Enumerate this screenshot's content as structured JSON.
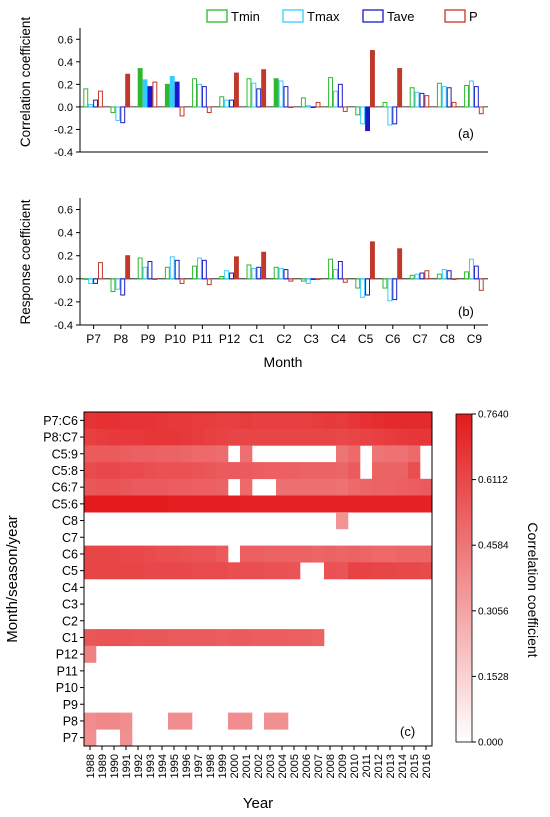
{
  "colors": {
    "tmin": "#2eb82e",
    "tmax": "#33ccff",
    "tave": "#1a1acc",
    "p": "#c0392b"
  },
  "legend": {
    "tmin": "Tmin",
    "tmax": "Tmax",
    "tave": "Tave",
    "p": "P"
  },
  "chart_data": [
    {
      "type": "bar",
      "panel_label": "(a)",
      "ylabel": "Correlation coefficient",
      "ylim": [
        -0.4,
        0.7
      ],
      "yticks": [
        "-0.4",
        "-0.2",
        "0.0",
        "0.2",
        "0.4",
        "0.6"
      ],
      "categories": [
        "P7",
        "P8",
        "P9",
        "P10",
        "P11",
        "P12",
        "C1",
        "C2",
        "C3",
        "C4",
        "C5",
        "C6",
        "C7",
        "C8",
        "C9"
      ],
      "series": [
        {
          "name": "Tmin",
          "values": [
            0.16,
            -0.05,
            0.34,
            0.2,
            0.25,
            0.09,
            0.25,
            0.25,
            0.08,
            0.26,
            -0.07,
            0.04,
            0.17,
            0.21,
            0.19
          ]
        },
        {
          "name": "Tmax",
          "values": [
            0.02,
            -0.12,
            0.24,
            0.27,
            0.2,
            0.06,
            0.21,
            0.23,
            0.01,
            0.14,
            -0.15,
            -0.16,
            0.13,
            0.18,
            0.23
          ]
        },
        {
          "name": "Tave",
          "values": [
            0.06,
            -0.14,
            0.18,
            0.22,
            0.18,
            0.06,
            0.16,
            0.18,
            0.0,
            0.2,
            -0.21,
            -0.15,
            0.12,
            0.17,
            0.18
          ]
        },
        {
          "name": "P",
          "values": [
            0.14,
            0.29,
            0.22,
            -0.08,
            -0.05,
            0.3,
            0.33,
            0.0,
            0.04,
            -0.04,
            0.5,
            0.34,
            0.1,
            0.04,
            -0.06
          ]
        }
      ],
      "significant": {
        "Tmin": [
          false,
          false,
          true,
          true,
          false,
          false,
          false,
          true,
          false,
          false,
          false,
          false,
          false,
          false,
          false
        ],
        "Tmax": [
          false,
          false,
          true,
          true,
          false,
          false,
          false,
          false,
          false,
          false,
          false,
          false,
          false,
          false,
          false
        ],
        "Tave": [
          false,
          false,
          true,
          true,
          false,
          false,
          false,
          false,
          false,
          false,
          true,
          false,
          false,
          false,
          false
        ],
        "P": [
          false,
          true,
          false,
          false,
          false,
          true,
          true,
          false,
          false,
          false,
          true,
          true,
          false,
          false,
          false
        ]
      }
    },
    {
      "type": "bar",
      "panel_label": "(b)",
      "ylabel": "Response coefficient",
      "xlabel": "Month",
      "ylim": [
        -0.4,
        0.7
      ],
      "yticks": [
        "-0.4",
        "-0.2",
        "0.0",
        "0.2",
        "0.4",
        "0.6"
      ],
      "categories": [
        "P7",
        "P8",
        "P9",
        "P10",
        "P11",
        "P12",
        "C1",
        "C2",
        "C3",
        "C4",
        "C5",
        "C6",
        "C7",
        "C8",
        "C9"
      ],
      "series": [
        {
          "name": "Tmin",
          "values": [
            0.0,
            -0.11,
            0.18,
            0.1,
            0.11,
            0.02,
            0.12,
            0.1,
            -0.02,
            0.17,
            -0.08,
            -0.08,
            0.03,
            0.04,
            0.06
          ]
        },
        {
          "name": "Tmax",
          "values": [
            -0.04,
            -0.09,
            0.1,
            0.19,
            0.18,
            0.07,
            0.09,
            0.09,
            -0.04,
            0.08,
            -0.16,
            -0.19,
            0.04,
            0.08,
            0.17
          ]
        },
        {
          "name": "Tave",
          "values": [
            -0.04,
            -0.14,
            0.15,
            0.16,
            0.16,
            0.05,
            0.1,
            0.08,
            0.0,
            0.15,
            -0.14,
            -0.18,
            0.05,
            0.07,
            0.11
          ]
        },
        {
          "name": "P",
          "values": [
            0.14,
            0.2,
            0.0,
            -0.04,
            -0.05,
            0.19,
            0.23,
            -0.02,
            0.0,
            -0.03,
            0.32,
            0.26,
            0.07,
            0.0,
            -0.1
          ]
        }
      ],
      "significant": {
        "Tmin": [
          false,
          false,
          false,
          false,
          false,
          false,
          false,
          false,
          false,
          false,
          false,
          false,
          false,
          false,
          false
        ],
        "Tmax": [
          false,
          false,
          false,
          false,
          false,
          false,
          false,
          false,
          false,
          false,
          false,
          false,
          false,
          false,
          false
        ],
        "Tave": [
          false,
          false,
          false,
          false,
          false,
          false,
          false,
          false,
          false,
          false,
          false,
          false,
          false,
          false,
          false
        ],
        "P": [
          false,
          true,
          false,
          false,
          false,
          true,
          true,
          false,
          false,
          false,
          true,
          true,
          false,
          false,
          false
        ]
      }
    },
    {
      "type": "heatmap",
      "panel_label": "(c)",
      "xlabel": "Year",
      "ylabel": "Month/season/year",
      "colorbar_label": "Correlation coefficient",
      "colorbar_ticks": [
        "0.7640",
        "0.6112",
        "0.4584",
        "0.3056",
        "0.1528",
        "0.000"
      ],
      "colorbar_range": [
        0,
        0.764
      ],
      "x": [
        "1988",
        "1989",
        "1990",
        "1991",
        "1992",
        "1993",
        "1994",
        "1995",
        "1996",
        "1997",
        "1998",
        "1999",
        "2000",
        "2001",
        "2002",
        "2003",
        "2004",
        "2005",
        "2006",
        "2007",
        "2008",
        "2009",
        "2010",
        "2011",
        "2012",
        "2013",
        "2014",
        "2015",
        "2016"
      ],
      "y": [
        "P7:C6",
        "P8:C7",
        "C5:9",
        "C5:8",
        "C6:7",
        "C5:6",
        "C8",
        "C7",
        "C6",
        "C5",
        "C4",
        "C3",
        "C2",
        "C1",
        "P12",
        "P11",
        "P10",
        "P9",
        "P8",
        "P7"
      ],
      "rows": [
        [
          0.68,
          0.69,
          0.69,
          0.68,
          0.68,
          0.68,
          0.67,
          0.66,
          0.66,
          0.65,
          0.65,
          0.64,
          0.64,
          0.65,
          0.64,
          0.64,
          0.64,
          0.64,
          0.64,
          0.65,
          0.66,
          0.65,
          0.67,
          0.69,
          0.7,
          0.71,
          0.71,
          0.71,
          0.71
        ],
        [
          0.64,
          0.65,
          0.66,
          0.66,
          0.66,
          0.67,
          0.67,
          0.67,
          0.66,
          0.65,
          0.64,
          0.63,
          0.62,
          0.62,
          0.62,
          0.62,
          0.62,
          0.62,
          0.62,
          0.62,
          0.62,
          0.61,
          0.62,
          0.63,
          0.64,
          0.65,
          0.66,
          0.67,
          0.67
        ],
        [
          0.55,
          0.55,
          0.55,
          0.54,
          0.53,
          0.53,
          0.52,
          0.52,
          0.51,
          0.5,
          0.5,
          0.49,
          0.0,
          0.48,
          0.0,
          0.0,
          0.0,
          0.0,
          0.0,
          0.0,
          0.0,
          0.46,
          0.5,
          0.0,
          0.46,
          0.47,
          0.47,
          0.5,
          0.0
        ],
        [
          0.6,
          0.61,
          0.61,
          0.6,
          0.6,
          0.59,
          0.58,
          0.58,
          0.58,
          0.57,
          0.56,
          0.55,
          0.55,
          0.55,
          0.54,
          0.53,
          0.53,
          0.53,
          0.52,
          0.52,
          0.52,
          0.51,
          0.55,
          0.0,
          0.52,
          0.52,
          0.52,
          0.59,
          0.0
        ],
        [
          0.56,
          0.57,
          0.57,
          0.56,
          0.55,
          0.55,
          0.55,
          0.54,
          0.54,
          0.53,
          0.53,
          0.52,
          0.0,
          0.5,
          0.0,
          0.0,
          0.48,
          0.48,
          0.48,
          0.48,
          0.48,
          0.47,
          0.5,
          0.51,
          0.52,
          0.52,
          0.53,
          0.54,
          0.55
        ],
        [
          0.76,
          0.76,
          0.76,
          0.76,
          0.76,
          0.76,
          0.76,
          0.75,
          0.75,
          0.75,
          0.75,
          0.75,
          0.75,
          0.74,
          0.74,
          0.74,
          0.74,
          0.74,
          0.74,
          0.74,
          0.74,
          0.74,
          0.74,
          0.74,
          0.74,
          0.74,
          0.74,
          0.74,
          0.74
        ],
        [
          0.0,
          0.0,
          0.0,
          0.0,
          0.0,
          0.0,
          0.0,
          0.0,
          0.0,
          0.0,
          0.0,
          0.0,
          0.0,
          0.0,
          0.0,
          0.0,
          0.0,
          0.0,
          0.0,
          0.0,
          0.0,
          0.36,
          0.0,
          0.0,
          0.0,
          0.0,
          0.0,
          0.0,
          0.0
        ],
        [
          0,
          0,
          0,
          0,
          0,
          0,
          0,
          0,
          0,
          0,
          0,
          0,
          0,
          0,
          0,
          0,
          0,
          0,
          0,
          0,
          0,
          0,
          0,
          0,
          0,
          0,
          0,
          0,
          0
        ],
        [
          0.62,
          0.62,
          0.62,
          0.61,
          0.61,
          0.6,
          0.59,
          0.59,
          0.58,
          0.57,
          0.57,
          0.55,
          0.0,
          0.53,
          0.53,
          0.52,
          0.52,
          0.52,
          0.52,
          0.51,
          0.52,
          0.51,
          0.52,
          0.51,
          0.5,
          0.5,
          0.51,
          0.51,
          0.51
        ],
        [
          0.62,
          0.62,
          0.62,
          0.62,
          0.62,
          0.61,
          0.61,
          0.61,
          0.61,
          0.6,
          0.6,
          0.6,
          0.59,
          0.59,
          0.59,
          0.58,
          0.58,
          0.57,
          0.0,
          0.0,
          0.58,
          0.57,
          0.63,
          0.63,
          0.62,
          0.62,
          0.61,
          0.61,
          0.6
        ],
        [
          0,
          0,
          0,
          0,
          0,
          0,
          0,
          0,
          0,
          0,
          0,
          0,
          0,
          0,
          0,
          0,
          0,
          0,
          0,
          0,
          0,
          0,
          0,
          0,
          0,
          0,
          0,
          0,
          0
        ],
        [
          0,
          0,
          0,
          0,
          0,
          0,
          0,
          0,
          0,
          0,
          0,
          0,
          0,
          0,
          0,
          0,
          0,
          0,
          0,
          0,
          0,
          0,
          0,
          0,
          0,
          0,
          0,
          0,
          0
        ],
        [
          0,
          0,
          0,
          0,
          0,
          0,
          0,
          0,
          0,
          0,
          0,
          0,
          0,
          0,
          0,
          0,
          0,
          0,
          0,
          0,
          0,
          0,
          0,
          0,
          0,
          0,
          0,
          0,
          0
        ],
        [
          0.56,
          0.57,
          0.57,
          0.57,
          0.56,
          0.56,
          0.56,
          0.55,
          0.55,
          0.55,
          0.55,
          0.54,
          0.55,
          0.55,
          0.54,
          0.54,
          0.54,
          0.53,
          0.53,
          0.52,
          0.0,
          0.0,
          0.0,
          0.0,
          0.0,
          0.0,
          0.0,
          0.0,
          0.0
        ],
        [
          0.42,
          0,
          0,
          0,
          0,
          0,
          0,
          0,
          0,
          0,
          0,
          0,
          0,
          0,
          0,
          0,
          0,
          0,
          0,
          0,
          0,
          0,
          0,
          0,
          0,
          0,
          0,
          0,
          0
        ],
        [
          0,
          0,
          0,
          0,
          0,
          0,
          0,
          0,
          0,
          0,
          0,
          0,
          0,
          0,
          0,
          0,
          0,
          0,
          0,
          0,
          0,
          0,
          0,
          0,
          0,
          0,
          0,
          0,
          0
        ],
        [
          0,
          0,
          0,
          0,
          0,
          0,
          0,
          0,
          0,
          0,
          0,
          0,
          0,
          0,
          0,
          0,
          0,
          0,
          0,
          0,
          0,
          0,
          0,
          0,
          0,
          0,
          0,
          0,
          0
        ],
        [
          0,
          0,
          0,
          0,
          0,
          0,
          0,
          0,
          0,
          0,
          0,
          0,
          0,
          0,
          0,
          0,
          0,
          0,
          0,
          0,
          0,
          0,
          0,
          0,
          0,
          0,
          0,
          0,
          0
        ],
        [
          0.38,
          0.4,
          0.4,
          0.38,
          0.0,
          0.0,
          0.0,
          0.38,
          0.38,
          0.0,
          0.0,
          0.0,
          0.38,
          0.38,
          0.0,
          0.37,
          0.37,
          0.0,
          0.0,
          0.0,
          0.0,
          0.0,
          0.0,
          0.0,
          0.0,
          0.0,
          0.0,
          0.0,
          0.0
        ],
        [
          0.37,
          0.0,
          0.0,
          0.37,
          0.0,
          0.0,
          0.0,
          0.0,
          0.0,
          0.0,
          0.0,
          0.0,
          0.0,
          0.0,
          0.0,
          0.0,
          0.0,
          0.0,
          0.0,
          0.0,
          0.0,
          0.0,
          0.0,
          0.0,
          0.0,
          0.0,
          0.0,
          0.0,
          0.0
        ]
      ]
    }
  ]
}
